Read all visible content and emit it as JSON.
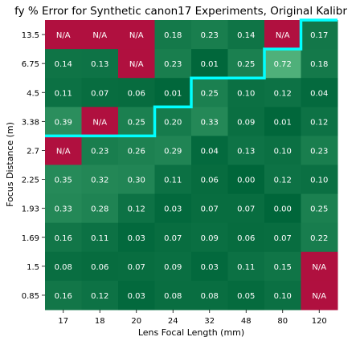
{
  "chart_data": {
    "type": "heatmap",
    "title": "fy % Error for Synthetic canon17 Experiments, Original Kalibr",
    "xlabel": "Lens Focal Length (mm)",
    "ylabel": "Focus Distance (m)",
    "x_categories": [
      "17",
      "18",
      "20",
      "24",
      "32",
      "48",
      "80",
      "120"
    ],
    "y_categories": [
      "13.5",
      "6.75",
      "4.5",
      "3.38",
      "2.7",
      "2.25",
      "1.93",
      "1.69",
      "1.5",
      "0.85"
    ],
    "values": [
      [
        null,
        null,
        null,
        0.18,
        0.23,
        0.14,
        null,
        0.17
      ],
      [
        0.14,
        0.13,
        null,
        0.23,
        0.01,
        0.25,
        0.72,
        0.18
      ],
      [
        0.11,
        0.07,
        0.06,
        0.01,
        0.25,
        0.1,
        0.12,
        0.04
      ],
      [
        0.39,
        null,
        0.25,
        0.2,
        0.33,
        0.09,
        0.01,
        0.12
      ],
      [
        null,
        0.23,
        0.26,
        0.29,
        0.04,
        0.13,
        0.1,
        0.23
      ],
      [
        0.35,
        0.32,
        0.3,
        0.11,
        0.06,
        0.0,
        0.12,
        0.1
      ],
      [
        0.33,
        0.28,
        0.12,
        0.03,
        0.07,
        0.07,
        0.0,
        0.25
      ],
      [
        0.16,
        0.11,
        0.03,
        0.07,
        0.09,
        0.06,
        0.07,
        0.22
      ],
      [
        0.08,
        0.06,
        0.07,
        0.09,
        0.03,
        0.11,
        0.15,
        null
      ],
      [
        0.16,
        0.12,
        0.03,
        0.08,
        0.08,
        0.05,
        0.1,
        null
      ]
    ],
    "missing_label": "N/A",
    "value_format_decimals": 2,
    "colors": {
      "low": "#00663a",
      "high": "#4fb07a",
      "missing": "#b0103f",
      "boundary": "#00ffff"
    },
    "color_range": [
      0,
      0.72
    ],
    "boundary_cells_per_column": [
      4,
      4,
      4,
      3,
      2,
      2,
      1,
      0
    ]
  }
}
